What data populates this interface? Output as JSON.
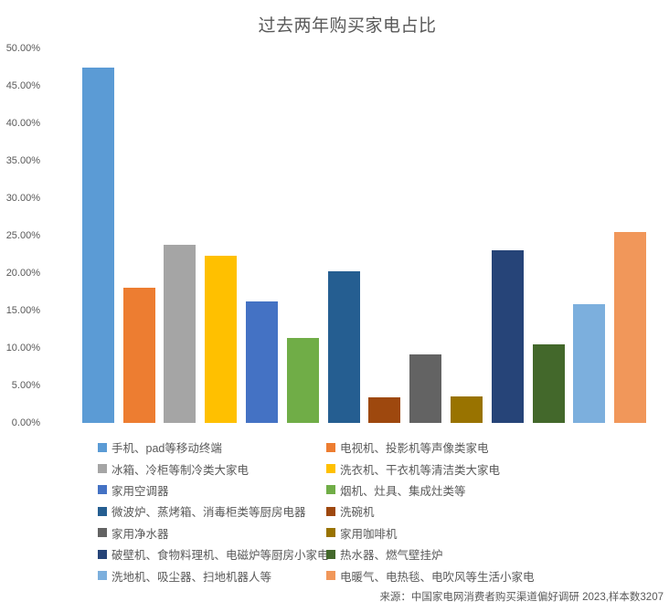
{
  "title": "过去两年购买家电占比",
  "source_note": "来源：中国家电网消费者购买渠道偏好调研 2023,样本数3207",
  "colors": {
    "text": "#595959",
    "background": "#FFFFFF"
  },
  "chart_data": {
    "type": "bar",
    "title": "过去两年购买家电占比",
    "categories": [
      "手机、pad等移动终端",
      "电视机、投影机等声像类家电",
      "冰箱、冷柜等制冷类大家电",
      "洗衣机、干衣机等清洁类大家电",
      "家用空调器",
      "烟机、灶具、集成灶类等",
      "微波炉、蒸烤箱、消毒柜类等厨房电器",
      "洗碗机",
      "家用净水器",
      "家用咖啡机",
      "破壁机、食物料理机、电磁炉等厨房小家电",
      "热水器、燃气壁挂炉",
      "洗地机、吸尘器、扫地机器人等",
      "电暖气、电热毯、电吹风等生活小家电"
    ],
    "values": [
      47.5,
      18.0,
      23.8,
      22.3,
      16.2,
      11.4,
      20.3,
      3.4,
      9.2,
      3.5,
      23.0,
      10.5,
      15.8,
      25.5
    ],
    "unit": "%",
    "colors": [
      "#5B9BD5",
      "#ED7D31",
      "#A5A5A5",
      "#FFC000",
      "#4472C4",
      "#70AD47",
      "#255E91",
      "#9E480E",
      "#636363",
      "#997300",
      "#264478",
      "#43682B",
      "#7CAFDD",
      "#F1975A"
    ],
    "xlabel": "",
    "ylabel": "",
    "ylim": [
      0,
      50
    ],
    "ytick_step": 5,
    "ytick_labels": [
      "0.00%",
      "5.00%",
      "10.00%",
      "15.00%",
      "20.00%",
      "25.00%",
      "30.00%",
      "35.00%",
      "40.00%",
      "45.00%",
      "50.00%"
    ],
    "grid": false,
    "axis_line_visible": false,
    "legend_position": "bottom",
    "legend_columns": 2
  }
}
